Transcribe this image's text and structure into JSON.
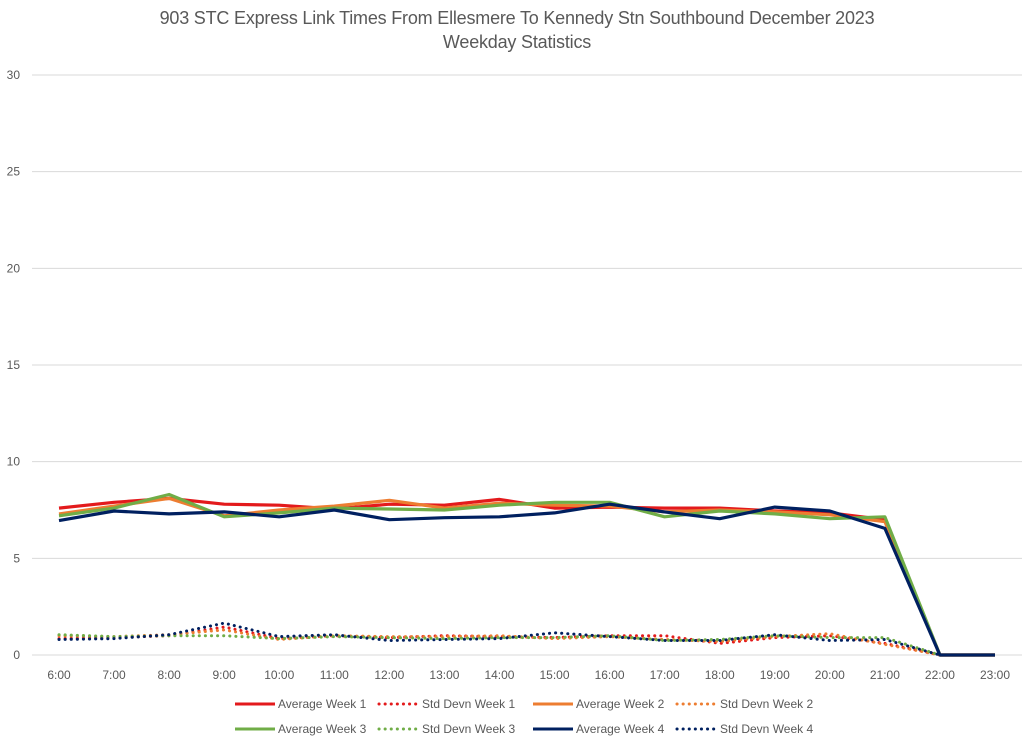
{
  "chart_data": {
    "type": "line",
    "title": "903 STC Express Link Times From Ellesmere To Kennedy Stn Southbound December 2023",
    "subtitle": "Weekday Statistics",
    "xlabel": "",
    "ylabel": "",
    "ylim": [
      0,
      30
    ],
    "yticks": [
      "0",
      "5",
      "10",
      "15",
      "20",
      "25",
      "30"
    ],
    "grid": true,
    "legend_position": "bottom",
    "categories": [
      "6:00",
      "7:00",
      "8:00",
      "9:00",
      "10:00",
      "11:00",
      "12:00",
      "13:00",
      "14:00",
      "15:00",
      "16:00",
      "17:00",
      "18:00",
      "19:00",
      "20:00",
      "21:00",
      "22:00",
      "23:00"
    ],
    "series": [
      {
        "name": "Average Week 1",
        "style": "solid",
        "color": "#e31a1c",
        "values": [
          7.6,
          7.9,
          8.1,
          7.8,
          7.75,
          7.55,
          7.8,
          7.75,
          8.05,
          7.6,
          7.65,
          7.6,
          7.6,
          7.45,
          7.35,
          7.0,
          0,
          0
        ]
      },
      {
        "name": "Std Devn Week 1",
        "style": "dotted",
        "color": "#e31a1c",
        "values": [
          0.85,
          0.9,
          1.0,
          1.45,
          0.85,
          1.0,
          0.9,
          1.0,
          0.95,
          0.9,
          1.0,
          1.0,
          0.6,
          0.9,
          1.0,
          0.6,
          0,
          null
        ]
      },
      {
        "name": "Average Week 2",
        "style": "solid",
        "color": "#ed7d31",
        "values": [
          7.3,
          7.7,
          8.1,
          7.2,
          7.5,
          7.7,
          8.0,
          7.6,
          7.85,
          7.75,
          7.7,
          7.4,
          7.5,
          7.4,
          7.25,
          6.9,
          0,
          0
        ]
      },
      {
        "name": "Std Devn Week 2",
        "style": "dotted",
        "color": "#ed7d31",
        "values": [
          1.0,
          0.95,
          1.05,
          1.3,
          0.8,
          1.0,
          0.95,
          0.95,
          1.0,
          0.85,
          0.95,
          0.8,
          0.7,
          0.95,
          1.1,
          0.55,
          0,
          null
        ]
      },
      {
        "name": "Average Week 3",
        "style": "solid",
        "color": "#70ad47",
        "values": [
          7.2,
          7.6,
          8.3,
          7.15,
          7.35,
          7.6,
          7.55,
          7.5,
          7.75,
          7.9,
          7.9,
          7.15,
          7.45,
          7.3,
          7.05,
          7.15,
          0,
          0
        ]
      },
      {
        "name": "Std Devn Week 3",
        "style": "dotted",
        "color": "#70ad47",
        "values": [
          1.05,
          0.95,
          1.0,
          1.0,
          0.85,
          0.95,
          0.9,
          0.85,
          0.9,
          0.9,
          1.0,
          0.75,
          0.8,
          1.0,
          0.9,
          0.9,
          0,
          null
        ]
      },
      {
        "name": "Average Week 4",
        "style": "solid",
        "color": "#002060",
        "values": [
          6.95,
          7.45,
          7.3,
          7.4,
          7.15,
          7.5,
          7.0,
          7.1,
          7.15,
          7.35,
          7.8,
          7.4,
          7.05,
          7.65,
          7.45,
          6.55,
          0,
          0
        ]
      },
      {
        "name": "Std Devn Week 4",
        "style": "dotted",
        "color": "#002060",
        "values": [
          0.8,
          0.85,
          1.05,
          1.65,
          0.95,
          1.05,
          0.75,
          0.8,
          0.85,
          1.15,
          0.95,
          0.75,
          0.75,
          1.05,
          0.75,
          0.8,
          0,
          null
        ]
      }
    ]
  }
}
